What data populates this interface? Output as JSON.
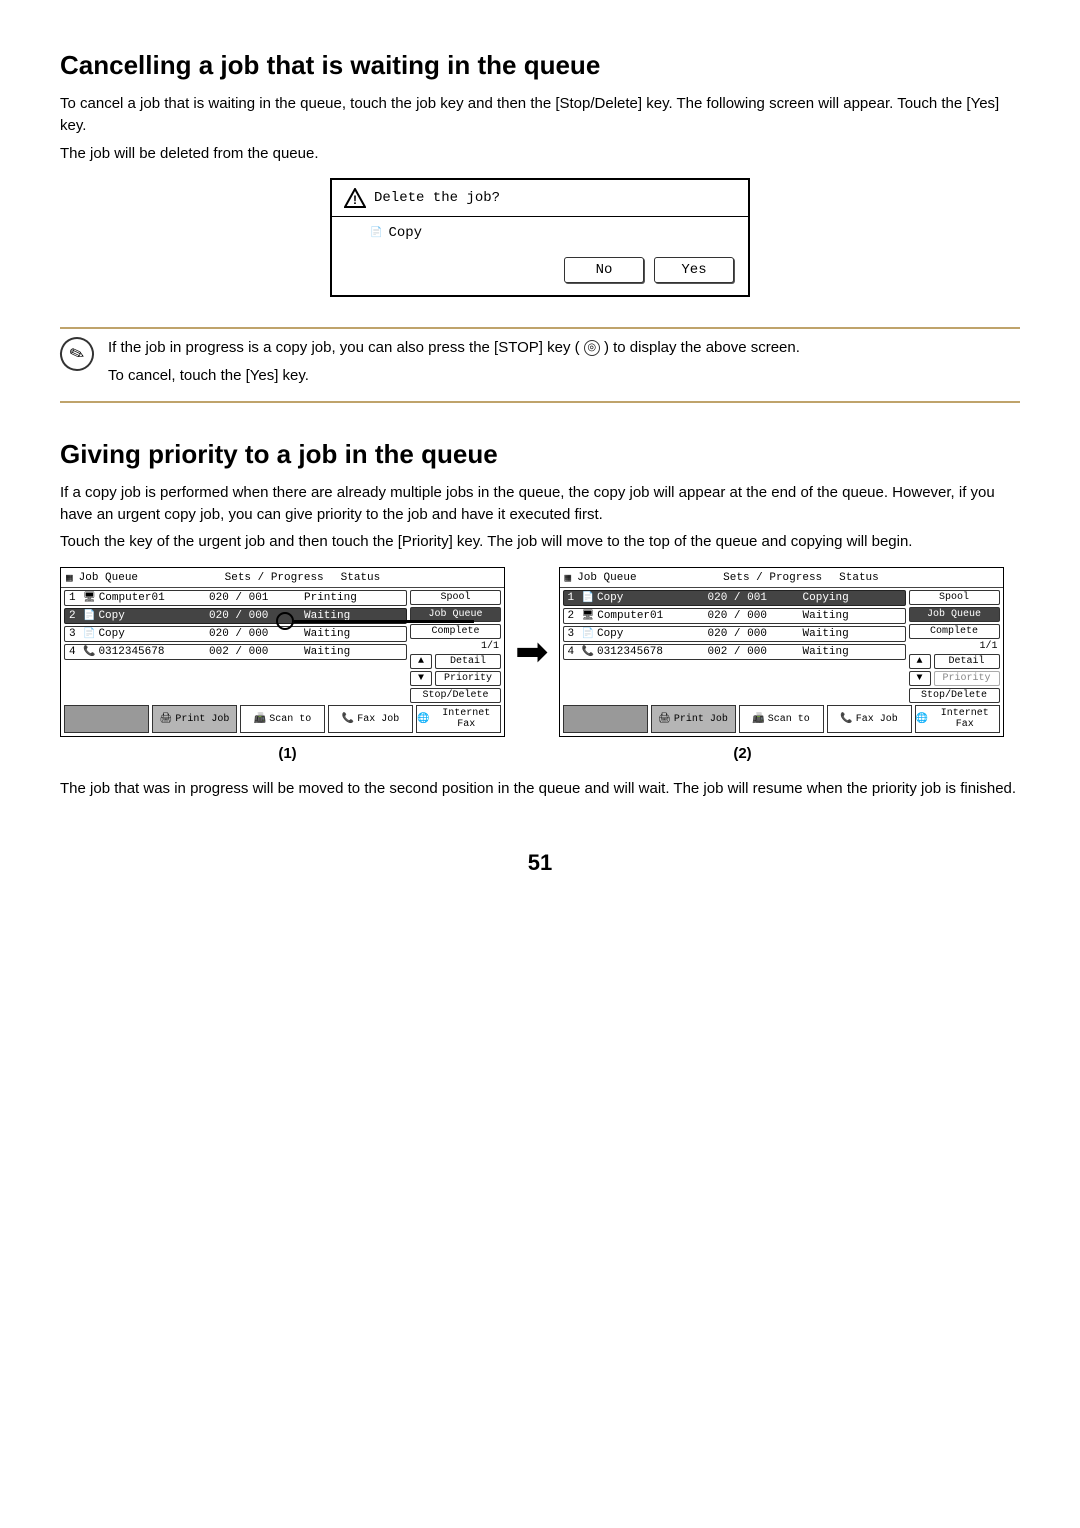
{
  "section1": {
    "heading": "Cancelling a job that is waiting in the queue",
    "para1": "To cancel a job that is waiting in the queue, touch the job key and then the [Stop/Delete] key. The following screen will appear. Touch the [Yes] key.",
    "para2": "The job will be deleted from the queue."
  },
  "dialog": {
    "title": "Delete the job?",
    "body_label": "Copy",
    "no_btn": "No",
    "yes_btn": "Yes"
  },
  "note": {
    "line1_a": "If the job in progress is a copy job, you can also press the [STOP] key (",
    "line1_b": ") to display the above screen.",
    "stop_glyph": "◎",
    "line2": "To cancel, touch the [Yes] key."
  },
  "section2": {
    "heading": "Giving priority to a job in the queue",
    "para1": "If a copy job is performed when there are already multiple jobs in the queue, the copy job will appear at the end of the queue. However, if you have an urgent copy job, you can give priority to the job and have it executed first.",
    "para2": "Touch the key of the urgent job and then touch the [Priority] key. The job will move to the top of the queue and copying will begin."
  },
  "queue_header": {
    "title": "Job Queue",
    "sets": "Sets / Progress",
    "status": "Status"
  },
  "side_buttons": {
    "spool": "Spool",
    "job_queue": "Job Queue",
    "complete": "Complete",
    "detail": "Detail",
    "priority": "Priority",
    "stop_delete": "Stop/Delete",
    "up": "▲",
    "down": "▼",
    "page": "1/1"
  },
  "tabs": {
    "print": "Print Job",
    "scan": "Scan to",
    "fax": "Fax Job",
    "ifax": "Internet Fax"
  },
  "queue1": {
    "rows": [
      {
        "idx": "1",
        "icon": "🖥",
        "name": "Computer01",
        "sets": "020 / 001",
        "status": "Printing",
        "sel": false
      },
      {
        "idx": "2",
        "icon": "📄",
        "name": "Copy",
        "sets": "020 / 000",
        "status": "Waiting",
        "sel": true
      },
      {
        "idx": "3",
        "icon": "📄",
        "name": "Copy",
        "sets": "020 / 000",
        "status": "Waiting",
        "sel": false
      },
      {
        "idx": "4",
        "icon": "📞",
        "name": "0312345678",
        "sets": "002 / 000",
        "status": "Waiting",
        "sel": false
      }
    ]
  },
  "queue2": {
    "rows": [
      {
        "idx": "1",
        "icon": "📄",
        "name": "Copy",
        "sets": "020 / 001",
        "status": "Copying",
        "sel": true
      },
      {
        "idx": "2",
        "icon": "🖥",
        "name": "Computer01",
        "sets": "020 / 000",
        "status": "Waiting",
        "sel": false
      },
      {
        "idx": "3",
        "icon": "📄",
        "name": "Copy",
        "sets": "020 / 000",
        "status": "Waiting",
        "sel": false
      },
      {
        "idx": "4",
        "icon": "📞",
        "name": "0312345678",
        "sets": "002 / 000",
        "status": "Waiting",
        "sel": false
      }
    ]
  },
  "captions": {
    "c1": "(1)",
    "c2": "(2)"
  },
  "after_para": "The job that was in progress will be moved to the second position in the queue and will wait. The job will resume when the priority job is finished.",
  "page_number": "51"
}
